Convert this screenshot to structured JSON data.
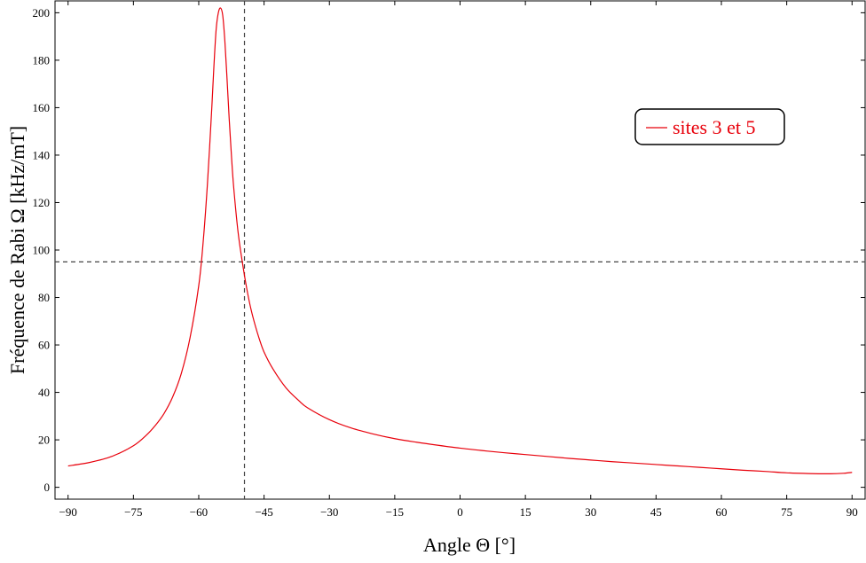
{
  "chart_data": {
    "type": "line",
    "title": "",
    "xlabel": "Angle Θ  [°]",
    "ylabel": "Fréquence de Rabi Ω  [kHz/mT]",
    "xlim": [
      -93,
      93
    ],
    "ylim": [
      -5,
      205
    ],
    "xticks": [
      -90,
      -75,
      -60,
      -45,
      -30,
      -15,
      0,
      15,
      30,
      45,
      60,
      75,
      90
    ],
    "xtick_labels": [
      "−90",
      "−75",
      "−60",
      "−45",
      "−30",
      "−15",
      "0",
      "15",
      "30",
      "45",
      "60",
      "75",
      "90"
    ],
    "yticks": [
      0,
      20,
      40,
      60,
      80,
      100,
      120,
      140,
      160,
      180,
      200
    ],
    "ytick_labels": [
      "0",
      "20",
      "40",
      "60",
      "80",
      "100",
      "120",
      "140",
      "160",
      "180",
      "200"
    ],
    "grid": false,
    "legend_position": "top-right",
    "reference_lines": {
      "vertical_x": -49.5,
      "horizontal_y": 95
    },
    "series": [
      {
        "name": "sites 3 et 5",
        "color": "#e8000b",
        "x": [
          -90,
          -85,
          -80,
          -75,
          -72,
          -70,
          -68,
          -66,
          -64,
          -62,
          -60,
          -59,
          -58,
          -57,
          -56.5,
          -56,
          -55.5,
          -55,
          -54.5,
          -54,
          -53.5,
          -53,
          -52.5,
          -52,
          -51,
          -50,
          -49,
          -48,
          -47,
          -46,
          -45,
          -43,
          -40,
          -37,
          -35,
          -30,
          -25,
          -20,
          -15,
          -10,
          -5,
          0,
          5,
          10,
          15,
          20,
          25,
          30,
          35,
          40,
          45,
          50,
          55,
          60,
          65,
          70,
          75,
          80,
          85,
          88,
          90
        ],
        "y": [
          9,
          10.5,
          13,
          17.5,
          22,
          26,
          31,
          38,
          48,
          63,
          85,
          103,
          128,
          160,
          178,
          193,
          200,
          202,
          199,
          188,
          172,
          155,
          140,
          127,
          108,
          95,
          84,
          75,
          68,
          62,
          57,
          50,
          42,
          36.5,
          33.5,
          28.5,
          25,
          22.5,
          20.5,
          19,
          17.7,
          16.5,
          15.5,
          14.6,
          13.8,
          13,
          12.2,
          11.5,
          10.8,
          10.2,
          9.6,
          9,
          8.4,
          7.8,
          7.2,
          6.7,
          6.1,
          5.8,
          5.7,
          5.9,
          6.3
        ]
      }
    ]
  }
}
